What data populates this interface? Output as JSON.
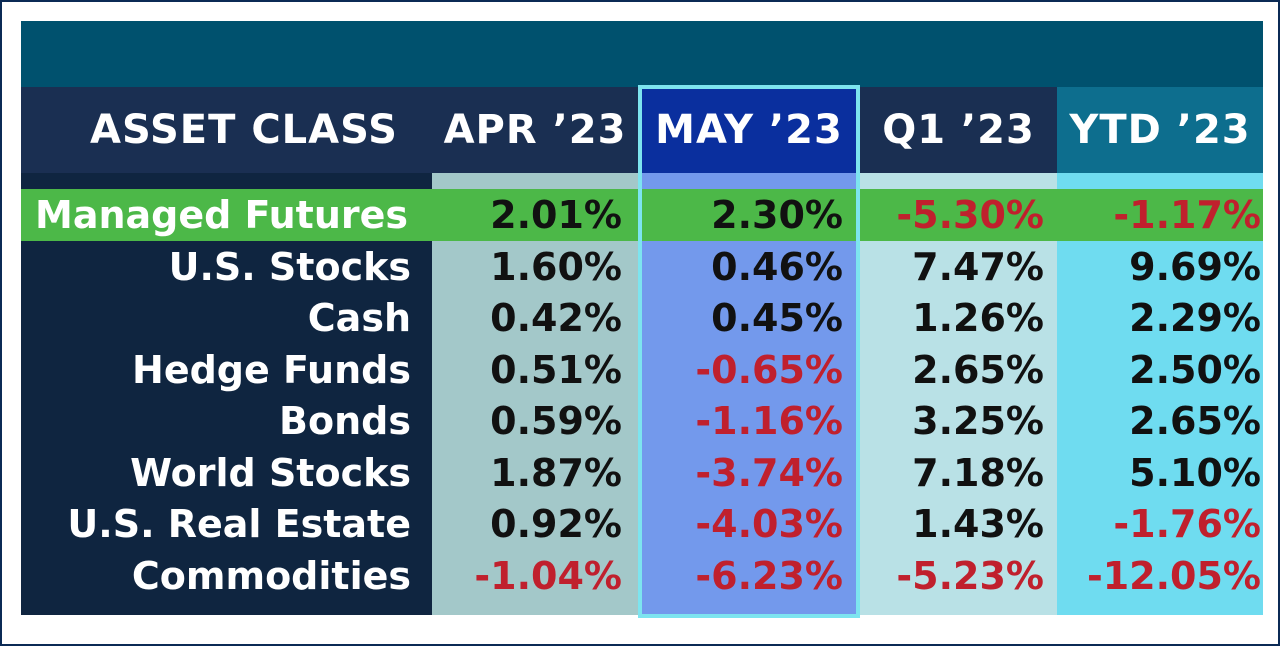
{
  "colors": {
    "panel": "#0f2540",
    "top_band": "#00516e",
    "header_dark": "#1a2f52",
    "header_may": "#0a2f9e",
    "header_ytd": "#0d6e8e",
    "apr_col": "#a3c8c9",
    "may_col": "#7399ec",
    "q1_col": "#b9e1e6",
    "ytd_col": "#6fdcf0",
    "highlight_row": "#4cb848",
    "highlight_label": "#ffffff",
    "may_outline": "#7de4ef",
    "positive_text": "#111111",
    "negative_text": "#c0202d"
  },
  "chart_data": {
    "type": "table",
    "columns": [
      "ASSET CLASS",
      "APR ’23",
      "MAY ’23",
      "Q1 ’23",
      "YTD ’23"
    ],
    "highlighted_column": "MAY ’23",
    "highlighted_row": "Managed Futures",
    "rows": [
      {
        "asset": "Managed Futures",
        "values": [
          "2.01%",
          "2.30%",
          "-5.30%",
          "-1.17%"
        ]
      },
      {
        "asset": "U.S. Stocks",
        "values": [
          "1.60%",
          "0.46%",
          "7.47%",
          "9.69%"
        ]
      },
      {
        "asset": "Cash",
        "values": [
          "0.42%",
          "0.45%",
          "1.26%",
          "2.29%"
        ]
      },
      {
        "asset": "Hedge Funds",
        "values": [
          "0.51%",
          "-0.65%",
          "2.65%",
          "2.50%"
        ]
      },
      {
        "asset": "Bonds",
        "values": [
          "0.59%",
          "-1.16%",
          "3.25%",
          "2.65%"
        ]
      },
      {
        "asset": "World Stocks",
        "values": [
          "1.87%",
          "-3.74%",
          "7.18%",
          "5.10%"
        ]
      },
      {
        "asset": "U.S. Real Estate",
        "values": [
          "0.92%",
          "-4.03%",
          "1.43%",
          "-1.76%"
        ]
      },
      {
        "asset": "Commodities",
        "values": [
          "-1.04%",
          "-6.23%",
          "-5.23%",
          "-12.05%"
        ]
      }
    ]
  }
}
